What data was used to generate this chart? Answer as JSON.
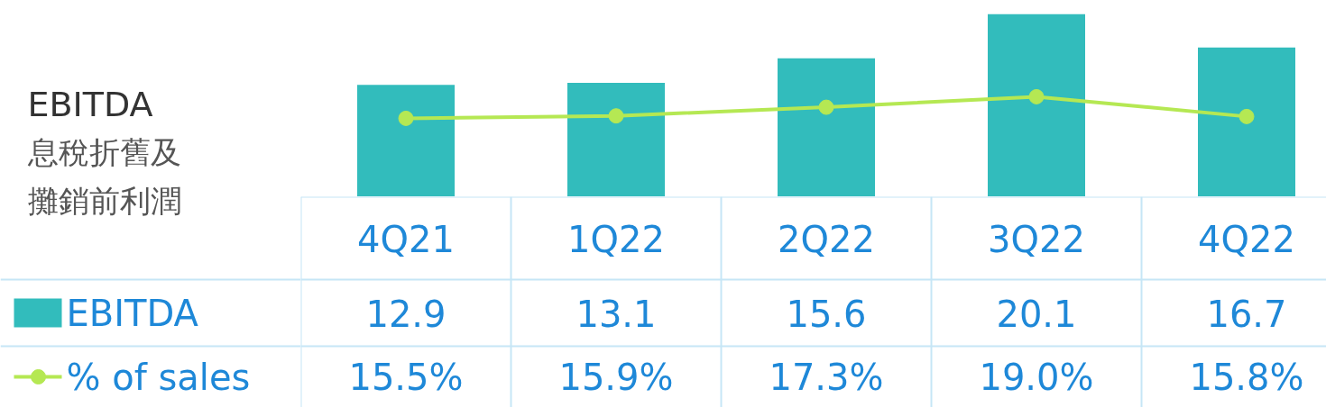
{
  "chart_data": {
    "type": "bar",
    "title": "EBITDA",
    "subtitle": "息稅折舊及攤銷前利潤",
    "categories": [
      "4Q21",
      "1Q22",
      "2Q22",
      "3Q22",
      "4Q22"
    ],
    "series": [
      {
        "name": "EBITDA",
        "color": "#32bcbc",
        "values": [
          12.9,
          13.1,
          15.6,
          20.1,
          16.7
        ],
        "value_labels": [
          "12.9",
          "13.1",
          "15.6",
          "20.1",
          "16.7"
        ]
      },
      {
        "name": "% of sales",
        "type": "line",
        "axis": "y2",
        "color": "#b5e853",
        "values": [
          15.5,
          15.9,
          17.3,
          19.0,
          15.8
        ],
        "value_labels": [
          "15.5%",
          "15.9%",
          "17.3%",
          "19.0%",
          "15.8%"
        ]
      }
    ],
    "ylim": [
      1.5,
      21.5
    ],
    "y2lim": [
      2.8,
      34.6
    ],
    "tick_labels": false,
    "marker": "circle",
    "legend": "left"
  }
}
